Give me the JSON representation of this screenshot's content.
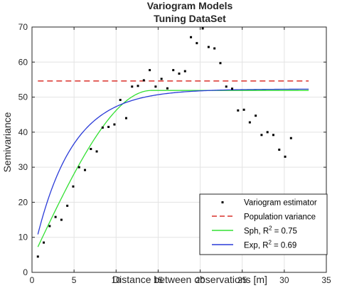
{
  "chart_data": {
    "type": "scatter",
    "title": "Variogram Models",
    "subtitle": "Tuning DataSet",
    "xlabel": "Distance between observations [m]",
    "ylabel": "Semivariance",
    "xlim": [
      0,
      35
    ],
    "ylim": [
      0,
      70
    ],
    "x_ticks": [
      0,
      5,
      10,
      15,
      20,
      25,
      30,
      35
    ],
    "x_tick_labels": [
      "0",
      "5",
      "10",
      "15",
      "20",
      "25",
      "30",
      "35"
    ],
    "y_ticks": [
      0,
      10,
      20,
      30,
      40,
      50,
      60,
      70
    ],
    "y_tick_labels": [
      "0",
      "10",
      "20",
      "30",
      "40",
      "50",
      "60",
      "70"
    ],
    "grid": true,
    "legend_position": "bottom-right",
    "series": [
      {
        "name": "Variogram estimator",
        "kind": "points",
        "color": "#000000",
        "x": [
          0.7,
          1.4,
          2.1,
          2.8,
          3.5,
          4.2,
          4.9,
          5.6,
          6.3,
          7.0,
          7.7,
          8.4,
          9.1,
          9.8,
          10.5,
          11.2,
          11.9,
          12.6,
          13.3,
          14.0,
          14.7,
          15.4,
          16.1,
          16.8,
          17.5,
          18.2,
          18.9,
          19.6,
          20.3,
          21.0,
          21.7,
          22.4,
          23.1,
          23.8,
          24.5,
          25.2,
          25.9,
          26.6,
          27.3,
          28.0,
          28.7,
          29.4,
          30.1,
          30.8,
          31.5,
          32.2,
          32.9
        ],
        "y": [
          4.5,
          8.5,
          13.2,
          15.8,
          15.0,
          19.0,
          24.5,
          30.0,
          29.2,
          35.2,
          34.5,
          41.3,
          41.5,
          42.2,
          49.2,
          44.0,
          53.0,
          53.2,
          54.8,
          57.7,
          53.0,
          55.2,
          52.5,
          57.7,
          56.7,
          57.4,
          67.1,
          65.4,
          69.6,
          64.3,
          63.9,
          59.7,
          53.0,
          52.4,
          46.2,
          46.4,
          42.8,
          44.7,
          39.2,
          40.0,
          39.2,
          35.0,
          33.0,
          38.3,
          null,
          null,
          null
        ]
      },
      {
        "name": "Population variance",
        "kind": "dashed-line",
        "color": "#d9302a",
        "x": [
          0.7,
          32.9
        ],
        "y": [
          54.6,
          54.6
        ]
      },
      {
        "name": "Sph, R² = 0.75",
        "kind": "line",
        "color": "#33e033",
        "model": "spherical",
        "nugget": 3.7,
        "sill": 51.9,
        "range": 14.2,
        "x_start": 0.7,
        "x_end": 32.9
      },
      {
        "name": "Exp, R² = 0.69",
        "kind": "line",
        "color": "#2a3bd8",
        "model": "exponential",
        "nugget": 3.7,
        "sill": 52.3,
        "range": 4.4,
        "x_start": 0.7,
        "x_end": 32.9
      }
    ]
  },
  "legend": {
    "items": [
      "Variogram estimator",
      "Population variance",
      "Sph, R",
      "Exp, R"
    ],
    "r2_superscript": "2",
    "r2_values": [
      "= 0.75",
      "= 0.69"
    ]
  }
}
